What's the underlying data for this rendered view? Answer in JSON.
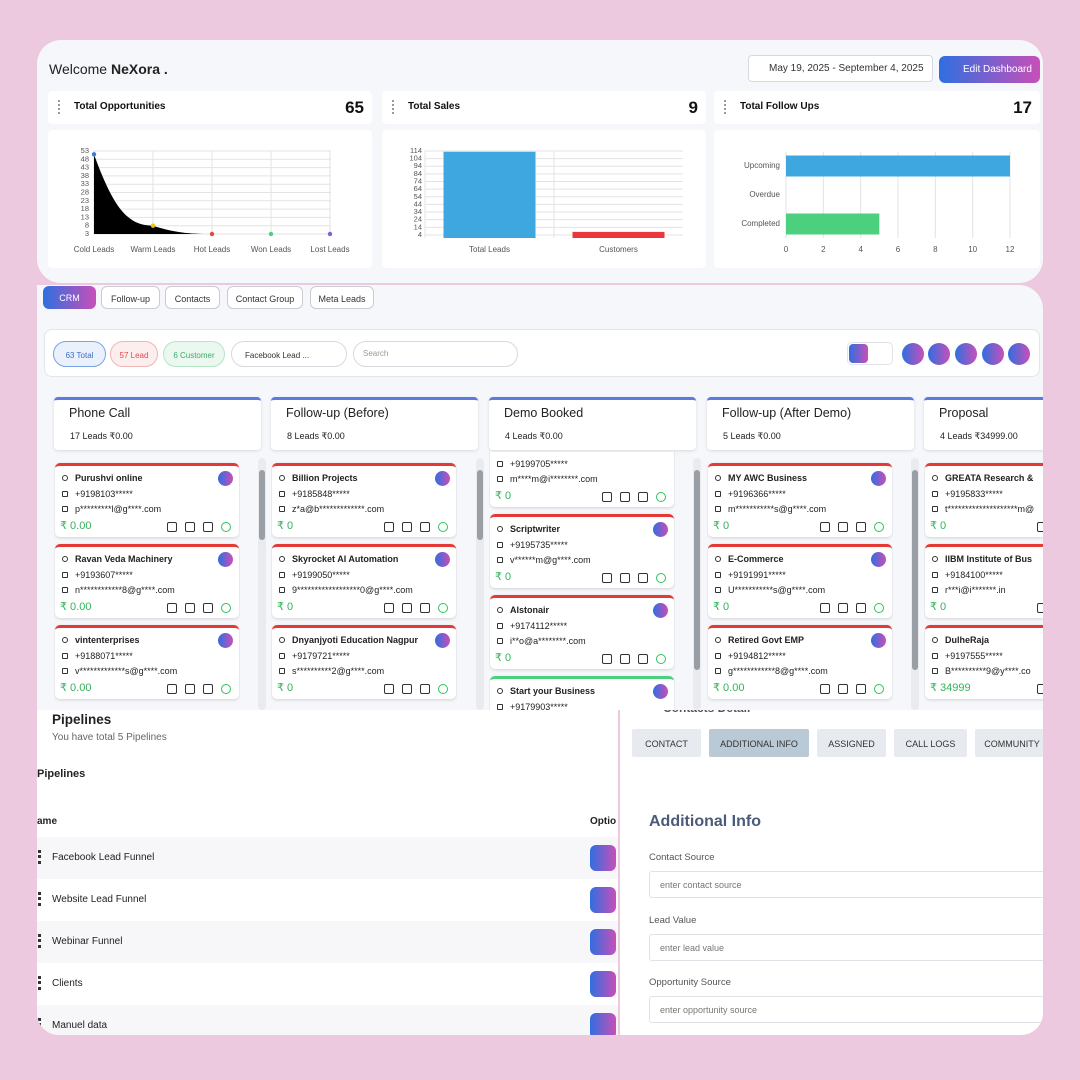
{
  "header": {
    "greeting": "Welcome",
    "user": "NeXora .",
    "date_range": "May 19, 2025 - September 4, 2025",
    "edit_button": "Edit Dashboard"
  },
  "widgets": [
    {
      "title": "Total Opportunities",
      "total": 65,
      "chart": {
        "type": "area",
        "categories": [
          "Cold Leads",
          "Warm Leads",
          "Hot Leads",
          "Won Leads",
          "Lost Leads"
        ],
        "values": [
          51,
          8,
          3,
          3,
          3
        ],
        "color": "#000000",
        "point_colors": [
          "#3b7dd8",
          "#f0c419",
          "#e84545",
          "#4cd07d",
          "#8a5cc9"
        ],
        "ylim": [
          3,
          53
        ],
        "yticks": [
          3,
          8,
          13,
          18,
          23,
          28,
          33,
          38,
          43,
          48,
          53
        ],
        "grid": true
      }
    },
    {
      "title": "Total Sales",
      "total": 9,
      "chart": {
        "type": "bar",
        "categories": [
          "Total Leads",
          "Customers"
        ],
        "values": [
          113,
          8
        ],
        "colors": [
          "#3ea7e0",
          "#e8383d"
        ],
        "ylim": [
          0,
          114
        ],
        "yticks": [
          4,
          14,
          24,
          34,
          44,
          54,
          64,
          74,
          84,
          94,
          104,
          114
        ],
        "grid": true
      }
    },
    {
      "title": "Total Follow Ups",
      "total": 17,
      "chart": {
        "type": "hbar",
        "categories": [
          "Upcoming",
          "Overdue",
          "Completed"
        ],
        "values": [
          12,
          0,
          5
        ],
        "colors": [
          "#3ea7e0",
          "#3ea7e0",
          "#4cd07d"
        ],
        "xlim": [
          0,
          12
        ],
        "xticks": [
          0,
          2,
          4,
          6,
          8,
          10,
          12
        ],
        "grid": true
      }
    }
  ],
  "tabs": [
    "CRM",
    "Follow-up",
    "Contacts",
    "Contact Group",
    "Meta Leads"
  ],
  "active_tab": 0,
  "filters": {
    "total": "63 Total",
    "lead": "57 Lead",
    "customer": "6 Customer",
    "source": "Facebook Lead ...",
    "search_placeholder": "Search"
  },
  "columns": [
    {
      "title": "Phone Call",
      "summary": "17 Leads ₹0.00",
      "cards": [
        {
          "name": "Purushvi online",
          "phone": "+9198103*****",
          "email": "p*********l@g****.com",
          "amount": "₹ 0.00",
          "color": "#e53935"
        },
        {
          "name": "Ravan Veda Machinery",
          "phone": "+9193607*****",
          "email": "n************8@g****.com",
          "amount": "₹ 0.00",
          "color": "#e53935"
        },
        {
          "name": "vintenterprises",
          "phone": "+9188071*****",
          "email": "v*************s@g****.com",
          "amount": "₹ 0.00",
          "color": "#e53935"
        }
      ]
    },
    {
      "title": "Follow-up (Before)",
      "summary": "8 Leads ₹0.00",
      "cards": [
        {
          "name": "Billion Projects",
          "phone": "+9185848*****",
          "email": "z*a@b*************.com",
          "amount": "₹ 0",
          "color": "#e53935"
        },
        {
          "name": "Skyrocket AI Automation",
          "phone": "+9199050*****",
          "email": "9******************0@g****.com",
          "amount": "₹ 0",
          "color": "#e53935"
        },
        {
          "name": "Dnyanjyoti Education Nagpur",
          "phone": "+9179721*****",
          "email": "s**********2@g****.com",
          "amount": "₹ 0",
          "color": "#e53935"
        }
      ]
    },
    {
      "title": "Demo Booked",
      "summary": "4 Leads ₹0.00",
      "cards": [
        {
          "phone": "+9199705*****",
          "email": "m****m@i********.com",
          "amount": "₹ 0",
          "color": "#e53935"
        },
        {
          "name": "Scriptwriter",
          "phone": "+9195735*****",
          "email": "v******m@g****.com",
          "amount": "₹ 0",
          "color": "#e53935"
        },
        {
          "name": "Alstonair",
          "phone": "+9174112*****",
          "email": "i**o@a********.com",
          "amount": "₹ 0",
          "color": "#e53935"
        },
        {
          "name": "Start your Business",
          "phone": "+9179903*****",
          "color": "#4cd07d"
        }
      ]
    },
    {
      "title": "Follow-up (After Demo)",
      "summary": "5 Leads ₹0.00",
      "cards": [
        {
          "name": "MY AWC Business",
          "phone": "+9196366*****",
          "email": "m***********s@g****.com",
          "amount": "₹ 0",
          "color": "#e53935"
        },
        {
          "name": "E-Commerce",
          "phone": "+9191991*****",
          "email": "U***********s@g****.com",
          "amount": "₹ 0",
          "color": "#e53935"
        },
        {
          "name": "Retired Govt EMP",
          "phone": "+9194812*****",
          "email": "g************8@g****.com",
          "amount": "₹ 0.00",
          "color": "#e53935"
        }
      ]
    },
    {
      "title": "Proposal",
      "summary": "4 Leads ₹34999.00",
      "cards": [
        {
          "name": "GREATA Research &",
          "phone": "+9195833*****",
          "email": "t********************m@",
          "amount": "₹ 0",
          "color": "#e53935"
        },
        {
          "name": "IIBM Institute of Bus",
          "phone": "+9184100*****",
          "email": "r***i@i*******.in",
          "amount": "₹ 0",
          "color": "#e53935"
        },
        {
          "name": "DulheRaja",
          "phone": "+9197555*****",
          "email": "B**********9@y****.co",
          "amount": "₹ 34999",
          "color": "#e53935"
        }
      ]
    }
  ],
  "pipelines": {
    "title": "Pipelines",
    "subtitle": "You have total 5 Pipelines",
    "section": "Pipelines",
    "headers": [
      "ame",
      "Optio"
    ],
    "rows": [
      "Facebook Lead Funnel",
      "Website Lead Funnel",
      "Webinar Funnel",
      "Clients",
      "Manuel data"
    ]
  },
  "contact_detail": {
    "title": "Contacts Detail",
    "tabs": [
      "CONTACT",
      "ADDITIONAL INFO",
      "ASSIGNED",
      "CALL LOGS",
      "COMMUNITY"
    ],
    "active_tab": 1,
    "heading": "Additional Info",
    "fields": [
      {
        "label": "Contact Source",
        "placeholder": "enter contact source"
      },
      {
        "label": "Lead Value",
        "placeholder": "enter lead value"
      },
      {
        "label": "Opportunity Source",
        "placeholder": "enter opportunity source"
      }
    ]
  }
}
